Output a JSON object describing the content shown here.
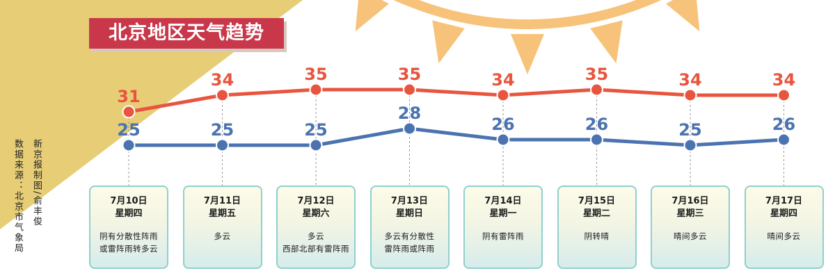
{
  "header": {
    "title": "北京地区天气趋势"
  },
  "credits": {
    "designer": "新京报制图/俞丰俊",
    "source": "数据来源：北京市气象局"
  },
  "colors": {
    "high": "#e8553f",
    "low": "#4a73b0",
    "banner": "#c8374a",
    "sun": "#f7c27a",
    "corner": "#e6cd76",
    "card_border": "#8fd0cc"
  },
  "days": [
    {
      "date": "7月10日",
      "weekday": "星期四",
      "condition": [
        "阴有分散性阵雨",
        "或雷阵雨转多云"
      ]
    },
    {
      "date": "7月11日",
      "weekday": "星期五",
      "condition": [
        "多云"
      ]
    },
    {
      "date": "7月12日",
      "weekday": "星期六",
      "condition": [
        "多云",
        "西部北部有雷阵雨"
      ]
    },
    {
      "date": "7月13日",
      "weekday": "星期日",
      "condition": [
        "多云有分散性",
        "雷阵雨或阵雨"
      ]
    },
    {
      "date": "7月14日",
      "weekday": "星期一",
      "condition": [
        "阴有雷阵雨"
      ]
    },
    {
      "date": "7月15日",
      "weekday": "星期二",
      "condition": [
        "阴转晴"
      ]
    },
    {
      "date": "7月16日",
      "weekday": "星期三",
      "condition": [
        "晴间多云"
      ]
    },
    {
      "date": "7月17日",
      "weekday": "星期四",
      "condition": [
        "晴间多云"
      ]
    }
  ],
  "chart_data": {
    "type": "line",
    "title": "北京地区天气趋势",
    "categories": [
      "7月10日",
      "7月11日",
      "7月12日",
      "7月13日",
      "7月14日",
      "7月15日",
      "7月16日",
      "7月17日"
    ],
    "series": [
      {
        "values": [
          31,
          34,
          35,
          35,
          34,
          35,
          34,
          34
        ],
        "color": "#e8553f"
      },
      {
        "values": [
          25,
          25,
          25,
          28,
          26,
          26,
          25,
          26
        ],
        "color": "#4a73b0"
      }
    ],
    "grid": false,
    "legend": "none"
  }
}
